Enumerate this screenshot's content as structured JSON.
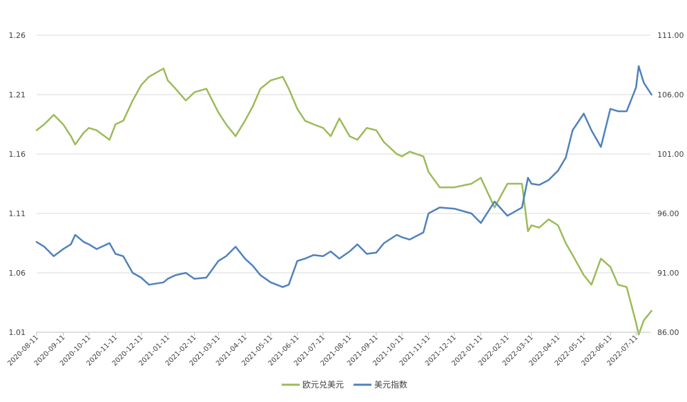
{
  "chart_data": {
    "type": "line",
    "title": "",
    "xlabel": "",
    "ylabel": "",
    "grid": true,
    "legend_position": "bottom-center",
    "x_tick_labels": [
      "2020-08-11",
      "2020-09-11",
      "2020-10-11",
      "2020-11-11",
      "2020-12-11",
      "2021-01-11",
      "2021-02-11",
      "2021-03-11",
      "2021-04-11",
      "2021-05-11",
      "2021-06-11",
      "2021-07-11",
      "2021-08-11",
      "2021-09-11",
      "2021-10-11",
      "2021-11-11",
      "2021-12-11",
      "2022-01-11",
      "2022-02-11",
      "2022-03-11",
      "2022-04-11",
      "2022-05-11",
      "2022-06-11",
      "2022-07-11"
    ],
    "y_left": {
      "ylim": [
        1.01,
        1.26
      ],
      "ticks": [
        "1.01",
        "1.06",
        "1.11",
        "1.16",
        "1.21",
        "1.26"
      ]
    },
    "y_right": {
      "ylim": [
        86,
        111
      ],
      "ticks": [
        "86.00",
        "91.00",
        "96.00",
        "101.00",
        "106.00",
        "111.00"
      ]
    },
    "series": [
      {
        "name": "欧元兑美元",
        "axis": "left",
        "color": "#9bbb59",
        "x": [
          "2020-08-11",
          "2020-08-20",
          "2020-08-31",
          "2020-09-11",
          "2020-09-20",
          "2020-09-25",
          "2020-10-05",
          "2020-10-11",
          "2020-10-20",
          "2020-11-04",
          "2020-11-11",
          "2020-11-20",
          "2020-12-01",
          "2020-12-11",
          "2020-12-20",
          "2021-01-06",
          "2021-01-11",
          "2021-01-20",
          "2021-02-01",
          "2021-02-11",
          "2021-02-25",
          "2021-03-11",
          "2021-03-20",
          "2021-03-31",
          "2021-04-11",
          "2021-04-20",
          "2021-04-29",
          "2021-05-11",
          "2021-05-25",
          "2021-06-01",
          "2021-06-11",
          "2021-06-20",
          "2021-06-30",
          "2021-07-11",
          "2021-07-20",
          "2021-07-30",
          "2021-08-11",
          "2021-08-20",
          "2021-08-31",
          "2021-09-11",
          "2021-09-20",
          "2021-10-05",
          "2021-10-11",
          "2021-10-20",
          "2021-11-05",
          "2021-11-11",
          "2021-11-24",
          "2021-12-11",
          "2021-12-31",
          "2022-01-11",
          "2022-01-27",
          "2022-02-11",
          "2022-02-28",
          "2022-03-07",
          "2022-03-11",
          "2022-03-20",
          "2022-03-31",
          "2022-04-11",
          "2022-04-20",
          "2022-04-28",
          "2022-05-11",
          "2022-05-20",
          "2022-05-31",
          "2022-06-11",
          "2022-06-20",
          "2022-06-30",
          "2022-07-11",
          "2022-07-14",
          "2022-07-20",
          "2022-07-29"
        ],
        "values": [
          1.18,
          1.185,
          1.193,
          1.185,
          1.175,
          1.168,
          1.178,
          1.182,
          1.18,
          1.172,
          1.185,
          1.188,
          1.205,
          1.218,
          1.225,
          1.232,
          1.222,
          1.215,
          1.205,
          1.212,
          1.215,
          1.195,
          1.185,
          1.175,
          1.188,
          1.2,
          1.215,
          1.222,
          1.225,
          1.215,
          1.198,
          1.188,
          1.185,
          1.182,
          1.175,
          1.19,
          1.175,
          1.172,
          1.182,
          1.18,
          1.17,
          1.16,
          1.158,
          1.162,
          1.158,
          1.145,
          1.132,
          1.132,
          1.135,
          1.14,
          1.115,
          1.135,
          1.135,
          1.095,
          1.1,
          1.098,
          1.105,
          1.1,
          1.085,
          1.075,
          1.058,
          1.05,
          1.072,
          1.065,
          1.05,
          1.048,
          1.018,
          1.008,
          1.02,
          1.028
        ]
      },
      {
        "name": "美元指数",
        "axis": "right",
        "color": "#4f81bd",
        "x": [
          "2020-08-11",
          "2020-08-20",
          "2020-08-31",
          "2020-09-11",
          "2020-09-20",
          "2020-09-25",
          "2020-10-05",
          "2020-10-11",
          "2020-10-20",
          "2020-11-04",
          "2020-11-11",
          "2020-11-20",
          "2020-12-01",
          "2020-12-11",
          "2020-12-20",
          "2021-01-06",
          "2021-01-11",
          "2021-01-20",
          "2021-02-01",
          "2021-02-11",
          "2021-02-25",
          "2021-03-11",
          "2021-03-20",
          "2021-03-31",
          "2021-04-11",
          "2021-04-20",
          "2021-04-29",
          "2021-05-11",
          "2021-05-25",
          "2021-06-01",
          "2021-06-11",
          "2021-06-20",
          "2021-06-30",
          "2021-07-11",
          "2021-07-20",
          "2021-07-30",
          "2021-08-11",
          "2021-08-20",
          "2021-08-31",
          "2021-09-11",
          "2021-09-20",
          "2021-10-05",
          "2021-10-11",
          "2021-10-20",
          "2021-11-05",
          "2021-11-11",
          "2021-11-24",
          "2021-12-11",
          "2021-12-31",
          "2022-01-11",
          "2022-01-27",
          "2022-02-11",
          "2022-02-28",
          "2022-03-07",
          "2022-03-11",
          "2022-03-20",
          "2022-03-31",
          "2022-04-11",
          "2022-04-20",
          "2022-04-28",
          "2022-05-11",
          "2022-05-20",
          "2022-05-31",
          "2022-06-11",
          "2022-06-20",
          "2022-06-30",
          "2022-07-11",
          "2022-07-14",
          "2022-07-20",
          "2022-07-29"
        ],
        "values": [
          93.6,
          93.2,
          92.4,
          93.0,
          93.4,
          94.2,
          93.6,
          93.4,
          93.0,
          93.5,
          92.6,
          92.4,
          91.0,
          90.6,
          90.0,
          90.2,
          90.5,
          90.8,
          91.0,
          90.5,
          90.6,
          92.0,
          92.4,
          93.2,
          92.2,
          91.6,
          90.8,
          90.2,
          89.8,
          90.0,
          92.0,
          92.2,
          92.5,
          92.4,
          92.8,
          92.2,
          92.8,
          93.4,
          92.6,
          92.7,
          93.5,
          94.2,
          94.0,
          93.8,
          94.4,
          96.0,
          96.5,
          96.4,
          96.0,
          95.2,
          97.0,
          95.8,
          96.5,
          99.0,
          98.5,
          98.4,
          98.8,
          99.6,
          100.7,
          103.0,
          104.4,
          103.0,
          101.6,
          104.8,
          104.6,
          104.6,
          106.6,
          108.4,
          107.0,
          106.0
        ]
      }
    ]
  }
}
